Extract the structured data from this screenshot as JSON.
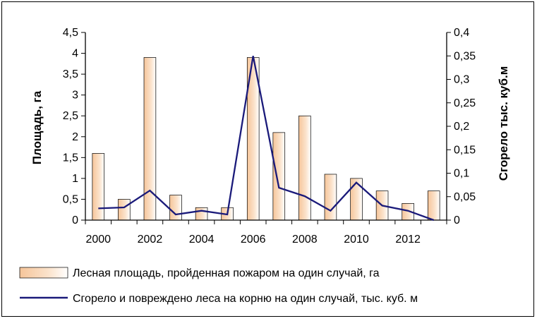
{
  "chart_data": {
    "type": "bar",
    "title": "",
    "x": [
      2000,
      2001,
      2002,
      2003,
      2004,
      2005,
      2006,
      2007,
      2008,
      2009,
      2010,
      2011,
      2012,
      2013
    ],
    "x_tick_labels": [
      "2000",
      "2002",
      "2004",
      "2006",
      "2008",
      "2010",
      "2012"
    ],
    "ylabel": "Площадь, га",
    "ylabel_right": "Сгорело тыс. куб.м",
    "ylim": [
      0,
      4.5
    ],
    "ylim_right": [
      0,
      0.4
    ],
    "y_tick_labels": [
      "0",
      "0,5",
      "1",
      "1,5",
      "2",
      "2,5",
      "3",
      "3,5",
      "4",
      "4,5"
    ],
    "y_right_tick_labels": [
      "0",
      "0,05",
      "0,1",
      "0,15",
      "0,2",
      "0,25",
      "0,3",
      "0,35",
      "0,4"
    ],
    "grid": false,
    "legend_position": "bottom",
    "series": [
      {
        "name": "Лесная площадь, пройденная пожаром на один случай, га",
        "type": "bar",
        "axis": "left",
        "color": "#f3b98a",
        "values": [
          1.6,
          0.5,
          3.9,
          0.6,
          0.3,
          0.3,
          3.9,
          2.1,
          2.5,
          1.1,
          1.0,
          0.7,
          0.4,
          0.7
        ]
      },
      {
        "name": "Сгорело и повреждено леса на корню на один случай, тыс. куб. м",
        "type": "line",
        "axis": "right",
        "color": "#1a1a7a",
        "values": [
          0.025,
          0.027,
          0.063,
          0.012,
          0.02,
          0.012,
          0.35,
          0.069,
          0.051,
          0.02,
          0.08,
          0.031,
          0.02,
          0.0
        ]
      }
    ]
  }
}
